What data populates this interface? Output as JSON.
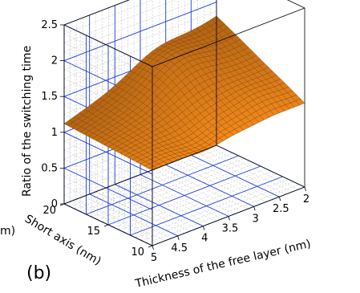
{
  "chart_data": {
    "type": "surface",
    "panel_label": "(b)",
    "zlabel": "Ratio of the switching time",
    "xlabel": "Thickness of the free layer (nm)",
    "ylabel": "Short axis (nm)",
    "left_axis_fragment": "m)",
    "z_ticks": [
      "0",
      "0.5",
      "1",
      "1.5",
      "2",
      "2.5"
    ],
    "x_ticks": [
      "5",
      "4.5",
      "4",
      "3.5",
      "3",
      "2.5",
      "2"
    ],
    "y_ticks": [
      "10",
      "15",
      "20"
    ],
    "zlim": [
      0,
      2.5
    ],
    "xlim": [
      5,
      2
    ],
    "ylim": [
      10,
      20
    ],
    "grid": true,
    "surface_color": "#e8841a",
    "surface_edge_color": "#7a3a05",
    "grid_color": "#1f3fd8",
    "corner_values": [
      {
        "thickness": 5,
        "short_axis": 10,
        "ratio": 1.05
      },
      {
        "thickness": 2,
        "short_axis": 10,
        "ratio": 1.17
      },
      {
        "thickness": 5,
        "short_axis": 20,
        "ratio": 1.12
      },
      {
        "thickness": 2,
        "short_axis": 20,
        "ratio": 1.8
      }
    ]
  }
}
